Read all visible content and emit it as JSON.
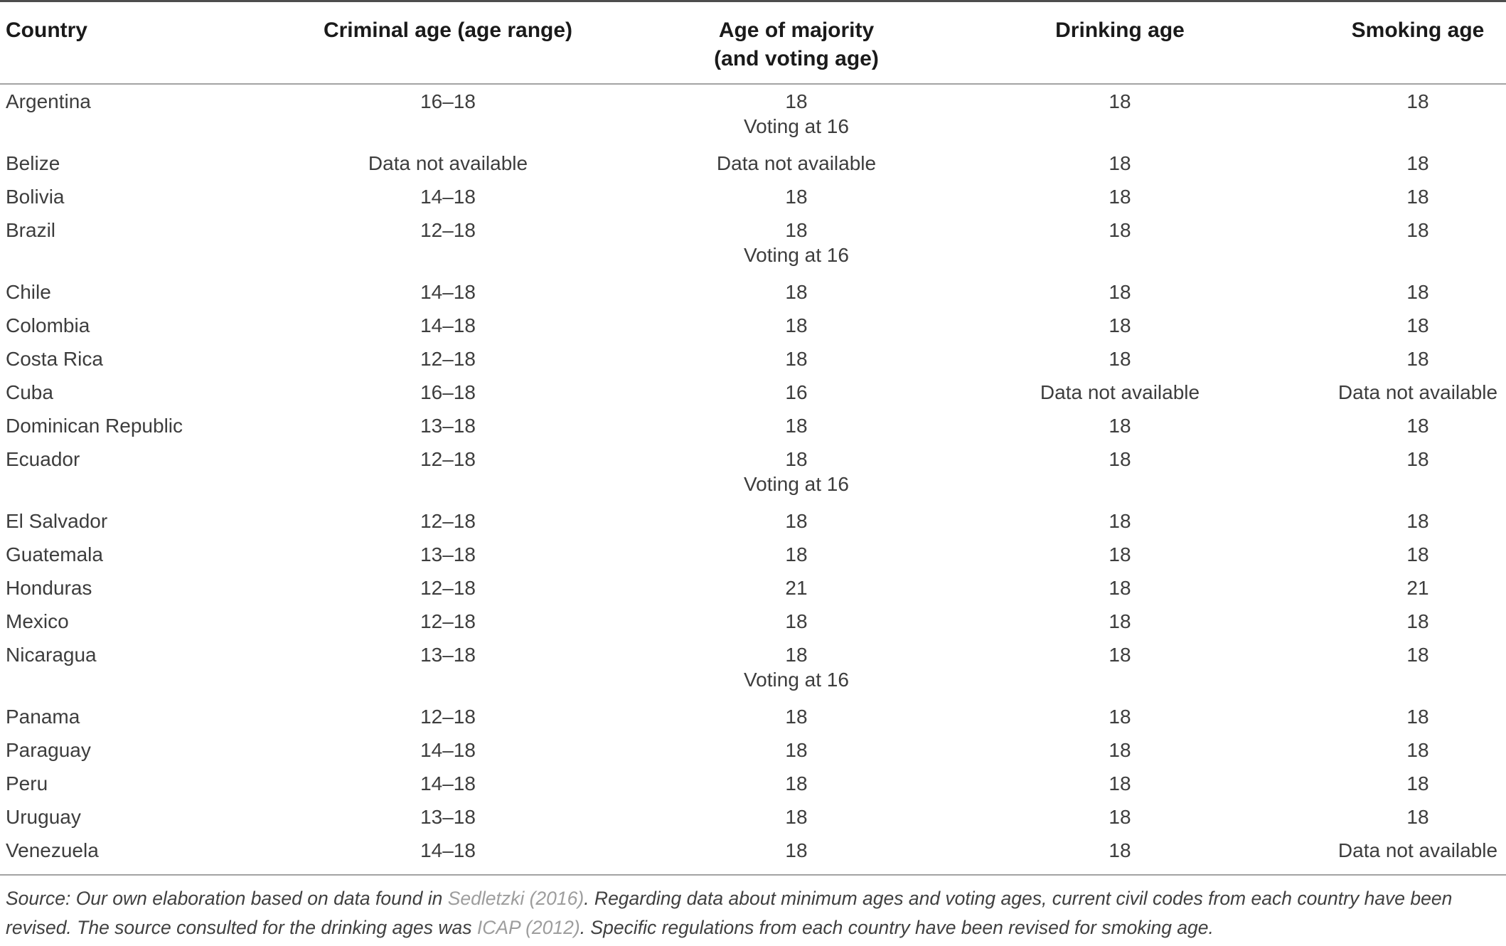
{
  "colors": {
    "header_text": "#1a1a1a",
    "body_text": "#3d3d3d",
    "caption_text": "#404040",
    "citation_link": "#9d9d9d",
    "top_rule": "#4d4d4d",
    "thin_rule": "#a3a3a3",
    "background": "#ffffff"
  },
  "table": {
    "header": {
      "country": "Country",
      "criminal": "Criminal age (age range)",
      "majority_line1": "Age of majority",
      "majority_line2": "(and voting age)",
      "drinking": "Drinking age",
      "smoking": "Smoking age"
    },
    "rows": [
      {
        "country": "Argentina",
        "criminal": "16–18",
        "majority": "18",
        "voting_note": "Voting at 16",
        "drinking": "18",
        "smoking": "18"
      },
      {
        "country": "Belize",
        "criminal": "Data not available",
        "majority": "Data not available",
        "voting_note": "",
        "drinking": "18",
        "smoking": "18"
      },
      {
        "country": "Bolivia",
        "criminal": "14–18",
        "majority": "18",
        "voting_note": "",
        "drinking": "18",
        "smoking": "18"
      },
      {
        "country": "Brazil",
        "criminal": "12–18",
        "majority": "18",
        "voting_note": "Voting at 16",
        "drinking": "18",
        "smoking": "18"
      },
      {
        "country": "Chile",
        "criminal": "14–18",
        "majority": "18",
        "voting_note": "",
        "drinking": "18",
        "smoking": "18"
      },
      {
        "country": "Colombia",
        "criminal": "14–18",
        "majority": "18",
        "voting_note": "",
        "drinking": "18",
        "smoking": "18"
      },
      {
        "country": "Costa Rica",
        "criminal": "12–18",
        "majority": "18",
        "voting_note": "",
        "drinking": "18",
        "smoking": "18"
      },
      {
        "country": "Cuba",
        "criminal": "16–18",
        "majority": "16",
        "voting_note": "",
        "drinking": "Data not available",
        "smoking": "Data not available"
      },
      {
        "country": "Dominican Republic",
        "criminal": "13–18",
        "majority": "18",
        "voting_note": "",
        "drinking": "18",
        "smoking": "18"
      },
      {
        "country": "Ecuador",
        "criminal": "12–18",
        "majority": "18",
        "voting_note": "Voting at 16",
        "drinking": "18",
        "smoking": "18"
      },
      {
        "country": "El Salvador",
        "criminal": "12–18",
        "majority": "18",
        "voting_note": "",
        "drinking": "18",
        "smoking": "18"
      },
      {
        "country": "Guatemala",
        "criminal": "13–18",
        "majority": "18",
        "voting_note": "",
        "drinking": "18",
        "smoking": "18"
      },
      {
        "country": "Honduras",
        "criminal": "12–18",
        "majority": "21",
        "voting_note": "",
        "drinking": "18",
        "smoking": "21"
      },
      {
        "country": "Mexico",
        "criminal": "12–18",
        "majority": "18",
        "voting_note": "",
        "drinking": "18",
        "smoking": "18"
      },
      {
        "country": "Nicaragua",
        "criminal": "13–18",
        "majority": "18",
        "voting_note": "Voting at 16",
        "drinking": "18",
        "smoking": "18"
      },
      {
        "country": "Panama",
        "criminal": "12–18",
        "majority": "18",
        "voting_note": "",
        "drinking": "18",
        "smoking": "18"
      },
      {
        "country": "Paraguay",
        "criminal": "14–18",
        "majority": "18",
        "voting_note": "",
        "drinking": "18",
        "smoking": "18"
      },
      {
        "country": "Peru",
        "criminal": "14–18",
        "majority": "18",
        "voting_note": "",
        "drinking": "18",
        "smoking": "18"
      },
      {
        "country": "Uruguay",
        "criminal": "13–18",
        "majority": "18",
        "voting_note": "",
        "drinking": "18",
        "smoking": "18"
      },
      {
        "country": "Venezuela",
        "criminal": "14–18",
        "majority": "18",
        "voting_note": "",
        "drinking": "18",
        "smoking": "Data not available"
      }
    ]
  },
  "footer": {
    "segments": [
      {
        "text": "Source: Our own elaboration based on data found in ",
        "link": false
      },
      {
        "text": "Sedletzki (2016)",
        "link": true
      },
      {
        "text": ". Regarding data about minimum ages and voting ages, current civil codes from each country have been revised. The source consulted for the drinking ages was ",
        "link": false
      },
      {
        "text": "ICAP (2012)",
        "link": true
      },
      {
        "text": ". Specific regulations from each country have been revised for smoking age.",
        "link": false
      }
    ]
  }
}
